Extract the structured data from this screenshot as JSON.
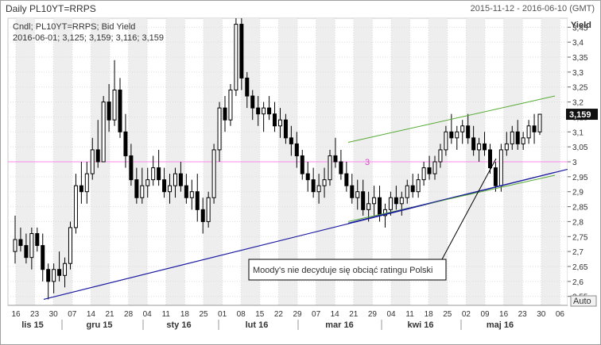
{
  "window": {
    "title": "Daily PL10YT=RRPS",
    "date_range": "2015-11-12 - 2016-06-10 (GMT)"
  },
  "legend": {
    "line1": "Cndl; PL10YT=RRPS; Bid Yield",
    "line2": "2016-06-01; 3,125; 3,159; 3,116; 3,159"
  },
  "yaxis": {
    "title": "Yield",
    "auto_button": "Auto",
    "last_value_label": "3,159"
  },
  "annotation": {
    "text": "Moody's nie decyduje się obciąć ratingu Polski"
  },
  "hline_label": "3",
  "colors": {
    "hline": "#ff88ee",
    "trend_main": "#1a1aa0",
    "channel": "#55aa33",
    "candle": "#000000",
    "weekend_band": "#eeeeee"
  },
  "chart_data": {
    "type": "candlestick",
    "series_name": "PL10YT=RRPS Bid Yield",
    "ylim": [
      2.52,
      3.48
    ],
    "y_ticks": [
      "2,55",
      "2,6",
      "2,65",
      "2,7",
      "2,75",
      "2,8",
      "2,85",
      "2,9",
      "2,95",
      "3",
      "3,05",
      "3,1",
      "3,15",
      "3,2",
      "3,25",
      "3,3",
      "3,35",
      "3,4",
      "3,45"
    ],
    "x_ticks": [
      "16",
      "23",
      "30",
      "07",
      "14",
      "21",
      "28",
      "04",
      "11",
      "18",
      "25",
      "01",
      "08",
      "15",
      "22",
      "29",
      "07",
      "14",
      "21",
      "29",
      "04",
      "11",
      "18",
      "25",
      "02",
      "09",
      "16",
      "23",
      "30",
      "06"
    ],
    "month_labels": [
      "lis 15",
      "gru 15",
      "sty 16",
      "lut 16",
      "mar 16",
      "kwi 16",
      "maj 16"
    ],
    "horizontal_line": 3.0,
    "last_value": 3.159,
    "candles": [
      [
        2.7,
        2.82,
        2.66,
        2.74
      ],
      [
        2.74,
        2.78,
        2.7,
        2.72
      ],
      [
        2.72,
        2.76,
        2.66,
        2.68
      ],
      [
        2.68,
        2.78,
        2.64,
        2.76
      ],
      [
        2.76,
        2.78,
        2.7,
        2.72
      ],
      [
        2.72,
        2.76,
        2.6,
        2.64
      ],
      [
        2.64,
        2.66,
        2.54,
        2.6
      ],
      [
        2.6,
        2.66,
        2.56,
        2.64
      ],
      [
        2.64,
        2.7,
        2.6,
        2.62
      ],
      [
        2.62,
        2.68,
        2.58,
        2.66
      ],
      [
        2.66,
        2.8,
        2.64,
        2.78
      ],
      [
        2.78,
        2.96,
        2.76,
        2.92
      ],
      [
        2.92,
        3.0,
        2.86,
        2.9
      ],
      [
        2.9,
        3.0,
        2.86,
        2.96
      ],
      [
        2.96,
        3.08,
        2.94,
        3.04
      ],
      [
        3.04,
        3.14,
        2.98,
        3.0
      ],
      [
        3.0,
        3.22,
        3.0,
        3.2
      ],
      [
        3.2,
        3.26,
        3.1,
        3.14
      ],
      [
        3.14,
        3.34,
        3.12,
        3.24
      ],
      [
        3.24,
        3.28,
        3.08,
        3.1
      ],
      [
        3.1,
        3.16,
        2.98,
        3.02
      ],
      [
        3.02,
        3.06,
        2.92,
        2.94
      ],
      [
        2.94,
        2.98,
        2.86,
        2.88
      ],
      [
        2.88,
        2.98,
        2.86,
        2.92
      ],
      [
        2.92,
        2.98,
        2.88,
        2.94
      ],
      [
        2.94,
        3.02,
        2.92,
        2.98
      ],
      [
        2.98,
        3.04,
        2.92,
        2.94
      ],
      [
        2.94,
        2.98,
        2.88,
        2.9
      ],
      [
        2.9,
        2.96,
        2.86,
        2.92
      ],
      [
        2.92,
        2.98,
        2.88,
        2.96
      ],
      [
        2.96,
        3.0,
        2.9,
        2.92
      ],
      [
        2.92,
        2.96,
        2.86,
        2.88
      ],
      [
        2.88,
        2.94,
        2.84,
        2.9
      ],
      [
        2.9,
        2.96,
        2.8,
        2.84
      ],
      [
        2.84,
        2.88,
        2.76,
        2.8
      ],
      [
        2.8,
        2.9,
        2.78,
        2.88
      ],
      [
        2.88,
        3.06,
        2.86,
        3.04
      ],
      [
        3.04,
        3.2,
        3.0,
        3.18
      ],
      [
        3.18,
        3.22,
        3.1,
        3.14
      ],
      [
        3.14,
        3.26,
        3.12,
        3.24
      ],
      [
        3.24,
        3.48,
        3.22,
        3.46
      ],
      [
        3.46,
        3.48,
        3.24,
        3.28
      ],
      [
        3.28,
        3.3,
        3.18,
        3.22
      ],
      [
        3.22,
        3.24,
        3.14,
        3.18
      ],
      [
        3.18,
        3.22,
        3.12,
        3.16
      ],
      [
        3.16,
        3.2,
        3.1,
        3.18
      ],
      [
        3.18,
        3.22,
        3.14,
        3.16
      ],
      [
        3.16,
        3.2,
        3.1,
        3.12
      ],
      [
        3.12,
        3.18,
        3.08,
        3.14
      ],
      [
        3.14,
        3.16,
        3.06,
        3.08
      ],
      [
        3.08,
        3.12,
        3.02,
        3.06
      ],
      [
        3.06,
        3.1,
        2.98,
        3.02
      ],
      [
        3.02,
        3.04,
        2.94,
        2.96
      ],
      [
        2.96,
        3.0,
        2.9,
        2.94
      ],
      [
        2.94,
        2.98,
        2.88,
        2.9
      ],
      [
        2.9,
        2.96,
        2.86,
        2.92
      ],
      [
        2.92,
        2.98,
        2.88,
        2.94
      ],
      [
        2.94,
        3.04,
        2.92,
        3.02
      ],
      [
        3.02,
        3.08,
        2.98,
        3.0
      ],
      [
        3.0,
        3.04,
        2.94,
        2.96
      ],
      [
        2.96,
        3.0,
        2.9,
        2.92
      ],
      [
        2.92,
        2.96,
        2.86,
        2.88
      ],
      [
        2.88,
        2.94,
        2.84,
        2.9
      ],
      [
        2.9,
        2.94,
        2.82,
        2.84
      ],
      [
        2.84,
        2.9,
        2.8,
        2.86
      ],
      [
        2.86,
        2.92,
        2.82,
        2.88
      ],
      [
        2.88,
        2.92,
        2.8,
        2.82
      ],
      [
        2.82,
        2.86,
        2.78,
        2.84
      ],
      [
        2.84,
        2.9,
        2.82,
        2.88
      ],
      [
        2.88,
        2.92,
        2.84,
        2.86
      ],
      [
        2.86,
        2.9,
        2.82,
        2.88
      ],
      [
        2.88,
        2.94,
        2.86,
        2.92
      ],
      [
        2.92,
        2.96,
        2.88,
        2.9
      ],
      [
        2.9,
        2.96,
        2.88,
        2.94
      ],
      [
        2.94,
        3.0,
        2.92,
        2.98
      ],
      [
        2.98,
        3.02,
        2.94,
        2.96
      ],
      [
        2.96,
        3.02,
        2.94,
        3.0
      ],
      [
        3.0,
        3.06,
        2.98,
        3.04
      ],
      [
        3.04,
        3.12,
        3.02,
        3.1
      ],
      [
        3.1,
        3.16,
        3.06,
        3.08
      ],
      [
        3.08,
        3.12,
        3.04,
        3.1
      ],
      [
        3.1,
        3.14,
        3.06,
        3.12
      ],
      [
        3.12,
        3.16,
        3.06,
        3.08
      ],
      [
        3.08,
        3.12,
        3.02,
        3.04
      ],
      [
        3.04,
        3.08,
        3.0,
        3.06
      ],
      [
        3.06,
        3.1,
        3.02,
        3.04
      ],
      [
        3.04,
        3.06,
        2.96,
        2.98
      ],
      [
        2.98,
        3.0,
        2.9,
        2.92
      ],
      [
        2.92,
        3.06,
        2.9,
        3.04
      ],
      [
        3.04,
        3.1,
        3.02,
        3.06
      ],
      [
        3.06,
        3.12,
        3.04,
        3.1
      ],
      [
        3.1,
        3.14,
        3.04,
        3.06
      ],
      [
        3.06,
        3.1,
        3.04,
        3.08
      ],
      [
        3.08,
        3.14,
        3.06,
        3.12
      ],
      [
        3.12,
        3.16,
        3.06,
        3.1
      ],
      [
        3.1,
        3.16,
        3.09,
        3.159
      ]
    ]
  }
}
